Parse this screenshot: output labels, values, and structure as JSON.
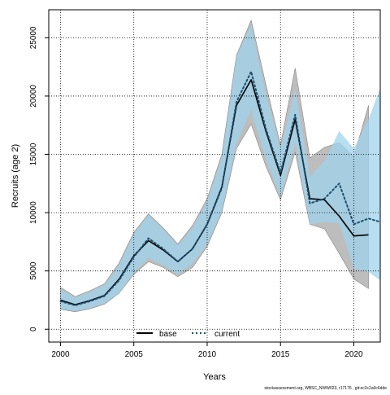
{
  "chart_data": {
    "type": "line",
    "xlabel": "Years",
    "ylabel": "Recruits (age 2)",
    "xlim": [
      1999.2,
      2021.8
    ],
    "ylim": [
      -1100,
      27400
    ],
    "xticks": [
      2000,
      2005,
      2010,
      2015,
      2020
    ],
    "xtick_labels": [
      "2000",
      "2005",
      "2010",
      "2015",
      "2020"
    ],
    "yticks": [
      0,
      5000,
      10000,
      15000,
      20000,
      25000
    ],
    "ytick_labels": [
      "0",
      "5000",
      "10000",
      "15000",
      "20000",
      "25000"
    ],
    "grid": true,
    "legend_position": "bottom",
    "footnote": "stockassessment.org, WBSC_NWW023, r17176 , git:ec2c2a0c6dde",
    "x": [
      2000,
      2001,
      2002,
      2003,
      2004,
      2005,
      2006,
      2007,
      2008,
      2009,
      2010,
      2011,
      2012,
      2013,
      2014,
      2015,
      2016,
      2017,
      2018,
      2019,
      2020,
      2021,
      2022
    ],
    "series": [
      {
        "name": "base",
        "line_style": "solid",
        "line_color": "#000000",
        "band_color": "#bdbdbd",
        "values": [
          2500,
          2100,
          2450,
          2900,
          4300,
          6300,
          7600,
          6800,
          5800,
          6900,
          9000,
          12200,
          19200,
          21400,
          17000,
          13200,
          18000,
          11200,
          11100,
          9700,
          8000,
          8100,
          null
        ],
        "lower": [
          1700,
          1500,
          1750,
          2150,
          3100,
          4700,
          5800,
          5300,
          4500,
          5300,
          7100,
          10000,
          15500,
          17600,
          14000,
          11100,
          15200,
          9000,
          8600,
          6500,
          4300,
          3500,
          null
        ],
        "upper": [
          3600,
          2800,
          3300,
          3900,
          5700,
          8300,
          9900,
          8700,
          7300,
          8900,
          11200,
          15000,
          23500,
          26500,
          21000,
          15800,
          22400,
          14700,
          15600,
          16000,
          14800,
          19200,
          null
        ]
      },
      {
        "name": "current",
        "line_style": "dotted",
        "line_color": "#1f4e6e",
        "band_color": "#9fd3ec",
        "values": [
          2400,
          2050,
          2400,
          2850,
          4200,
          6200,
          7800,
          6900,
          5800,
          6900,
          9000,
          12100,
          19500,
          22100,
          17200,
          13400,
          18400,
          10800,
          11200,
          12500,
          9000,
          9500,
          9200
        ],
        "lower": [
          1750,
          1550,
          1800,
          2200,
          3100,
          4800,
          6100,
          5500,
          4700,
          5600,
          7300,
          10100,
          15900,
          18800,
          14600,
          11300,
          16000,
          9000,
          9200,
          9100,
          5200,
          4900,
          4200
        ],
        "upper": [
          3400,
          2750,
          3200,
          3800,
          5500,
          8200,
          9800,
          8600,
          7200,
          8700,
          11000,
          14700,
          23400,
          26100,
          20200,
          15500,
          20600,
          13100,
          14400,
          17000,
          15500,
          18000,
          20700
        ]
      }
    ]
  }
}
